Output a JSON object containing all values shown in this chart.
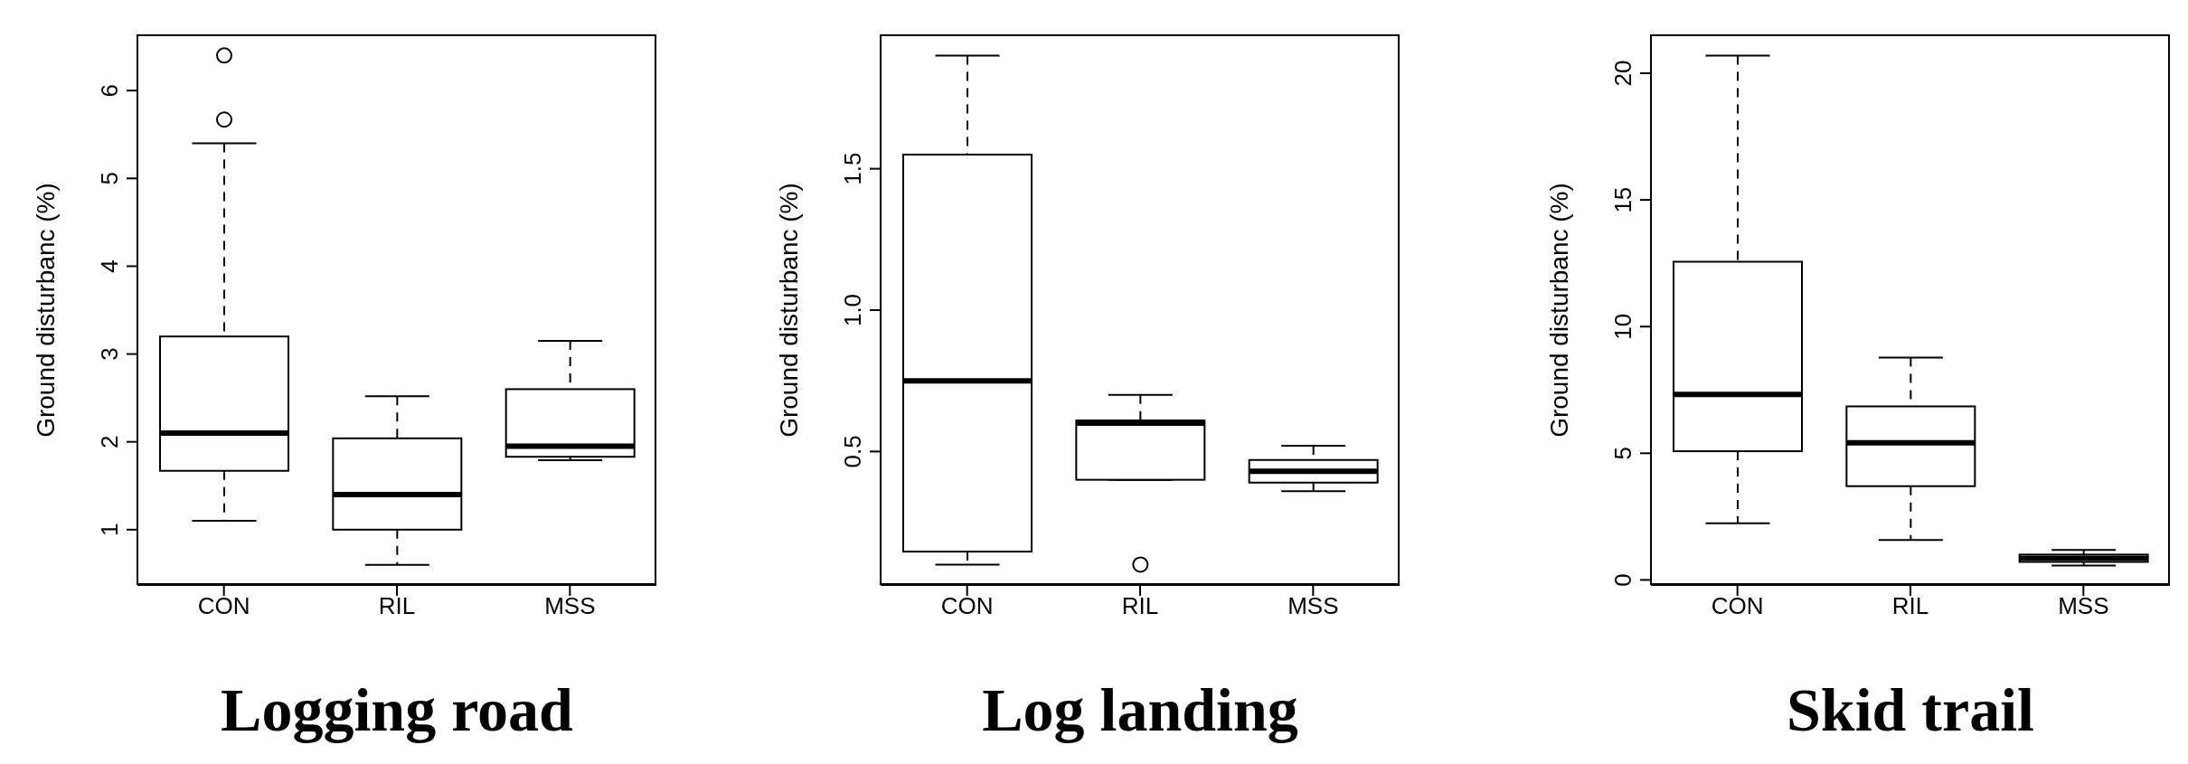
{
  "chart_data": [
    {
      "type": "box",
      "title": "Logging road",
      "ylabel": "Ground disturbanc (%)",
      "categories": [
        "CON",
        "RIL",
        "MSS"
      ],
      "ylim": [
        0.37,
        6.63
      ],
      "yticks": [
        1,
        2,
        3,
        4,
        5,
        6
      ],
      "boxes": [
        {
          "low": 1.1,
          "q1": 1.67,
          "median": 2.1,
          "q3": 3.2,
          "high": 5.4,
          "outliers": [
            5.67,
            6.4
          ]
        },
        {
          "low": 0.6,
          "q1": 1.0,
          "median": 1.4,
          "q3": 2.04,
          "high": 2.52
        },
        {
          "low": 1.79,
          "q1": 1.83,
          "median": 1.95,
          "q3": 2.6,
          "high": 3.15
        }
      ]
    },
    {
      "type": "box",
      "title": "Log landing",
      "ylabel": "Ground disturbanc (%)",
      "categories": [
        "CON",
        "RIL",
        "MSS"
      ],
      "ylim": [
        0.028,
        1.972
      ],
      "yticks": [
        0.5,
        {
          "value": 1,
          "label": "1.0"
        },
        1.5
      ],
      "boxes": [
        {
          "low": 0.1,
          "q1": 0.146,
          "median": 0.75,
          "q3": 1.55,
          "high": 1.9
        },
        {
          "low": 0.4,
          "q1": 0.4,
          "median": 0.6,
          "q3": 0.61,
          "high": 0.7,
          "outliers": [
            0.1
          ]
        },
        {
          "low": 0.36,
          "q1": 0.39,
          "median": 0.43,
          "q3": 0.47,
          "high": 0.52
        }
      ]
    },
    {
      "type": "box",
      "title": "Skid trail",
      "ylabel": "Ground disturbanc (%)",
      "categories": [
        "CON",
        "RIL",
        "MSS"
      ],
      "ylim": [
        -0.2,
        21.5
      ],
      "yticks": [
        0,
        5,
        10,
        15,
        20
      ],
      "boxes": [
        {
          "low": 2.24,
          "q1": 5.08,
          "median": 7.32,
          "q3": 12.56,
          "high": 20.7
        },
        {
          "low": 1.58,
          "q1": 3.7,
          "median": 5.41,
          "q3": 6.85,
          "high": 8.78
        },
        {
          "low": 0.57,
          "q1": 0.71,
          "median": 0.85,
          "q3": 1.0,
          "high": 1.18
        }
      ]
    }
  ]
}
